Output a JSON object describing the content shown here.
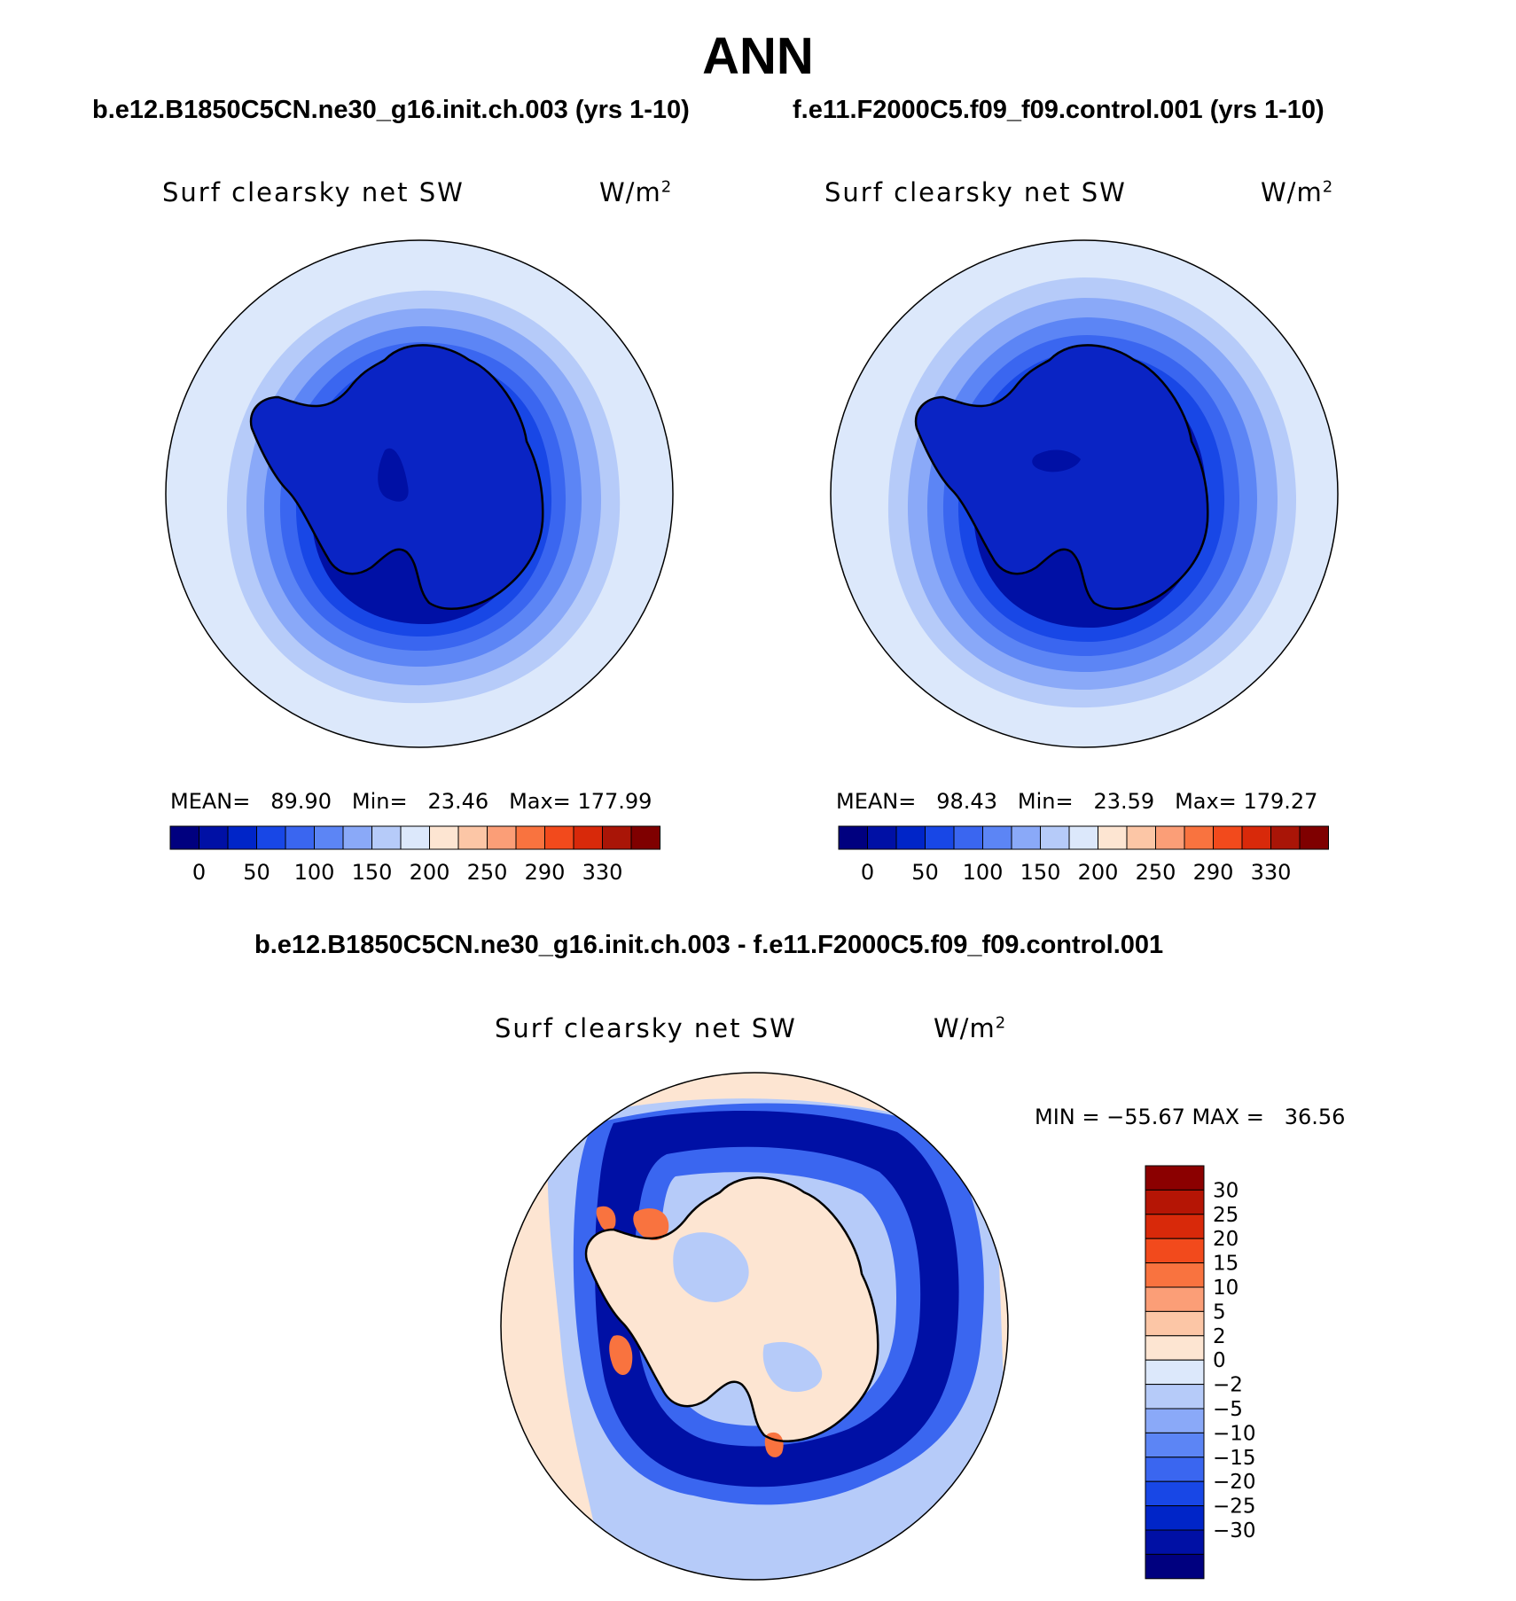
{
  "page_title": "ANN",
  "panels": [
    {
      "case_title": "b.e12.B1850C5CN.ne30_g16.init.ch.003 (yrs 1-10)",
      "variable": "Surf clearsky net SW",
      "units": "W/m",
      "units_exponent": "2",
      "stats": {
        "mean_label": "MEAN=",
        "mean": "89.90",
        "min_label": "Min=",
        "min": "23.46",
        "max_label": "Max=",
        "max": "177.99"
      }
    },
    {
      "case_title": "f.e11.F2000C5.f09_f09.control.001 (yrs 1-10)",
      "variable": "Surf clearsky net SW",
      "units": "W/m",
      "units_exponent": "2",
      "stats": {
        "mean_label": "MEAN=",
        "mean": "98.43",
        "min_label": "Min=",
        "min": "23.59",
        "max_label": "Max=",
        "max": "179.27"
      }
    }
  ],
  "diff_panel": {
    "case_title": "b.e12.B1850C5CN.ne30_g16.init.ch.003 - f.e11.F2000C5.f09_f09.control.001",
    "variable": "Surf clearsky net SW",
    "units": "W/m",
    "units_exponent": "2",
    "minmax": "MIN = −55.67 MAX =   36.56"
  },
  "colorbar_main": {
    "colors": [
      "#00007f",
      "#0010a5",
      "#0025c8",
      "#1847e6",
      "#3a66f0",
      "#5c85f5",
      "#8aa9f8",
      "#b6cbf9",
      "#dce8fb",
      "#fde5d2",
      "#fcc6a6",
      "#fb9e77",
      "#f9733f",
      "#f24a1c",
      "#d8290a",
      "#a91507",
      "#7f0000"
    ],
    "tick_labels": [
      "0",
      "50",
      "100",
      "150",
      "200",
      "250",
      "290",
      "330"
    ]
  },
  "colorbar_diff": {
    "colors": [
      "#8b0000",
      "#b51505",
      "#d8290a",
      "#f24a1c",
      "#f9733f",
      "#fb9e77",
      "#fcc6a6",
      "#fde5d2",
      "#dce8fb",
      "#b6cbf9",
      "#8aa9f8",
      "#5c85f5",
      "#3a66f0",
      "#1847e6",
      "#0025c8",
      "#0010a5",
      "#00007f"
    ],
    "tick_labels": [
      "30",
      "25",
      "20",
      "15",
      "10",
      "5",
      "2",
      "0",
      "−2",
      "−5",
      "−10",
      "−15",
      "−20",
      "−25",
      "−30"
    ]
  },
  "map_colors": {
    "outer": "#dce8fb",
    "ring1": "#b6cbf9",
    "ring2": "#8aa9f8",
    "ring3": "#5c85f5",
    "ring4": "#3a66f0",
    "ring5": "#1847e6",
    "inner": "#0025c8",
    "interior": "#0010a5",
    "land": "#0a24c4",
    "diff_base": "#fde5d2",
    "diff_pos": "#f9733f",
    "diff_neg_strong": "#0010a5",
    "diff_neg_mid": "#3a66f0",
    "diff_neg_light": "#b6cbf9"
  }
}
